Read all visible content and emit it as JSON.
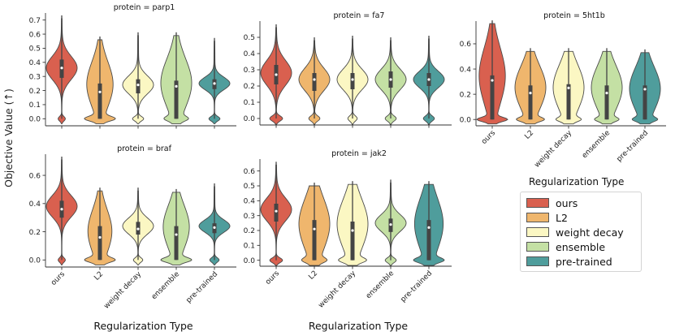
{
  "chart_data": {
    "type": "violin",
    "y_axis_label": "Objective Value (↑)",
    "x_axis_label": "Regularization Type",
    "categories": [
      "ours",
      "L2",
      "weight decay",
      "ensemble",
      "pre-trained"
    ],
    "colors": {
      "ours": "#d9604f",
      "L2": "#efb66d",
      "weight decay": "#fbf7c3",
      "ensemble": "#c4e0a4",
      "pre-trained": "#4f9d9c"
    },
    "legend": {
      "title": "Regularization Type",
      "entries": [
        "ours",
        "L2",
        "weight decay",
        "ensemble",
        "pre-trained"
      ]
    },
    "panels": [
      {
        "title": "protein = parp1",
        "ylim": [
          -0.05,
          0.75
        ],
        "yticks": [
          0.0,
          0.1,
          0.2,
          0.3,
          0.4,
          0.5,
          0.6,
          0.7
        ],
        "show_xticklabels": false,
        "show_xlabel": false,
        "violins": [
          {
            "category": "ours",
            "min": 0.0,
            "max": 0.71,
            "mode": 0.36,
            "median": 0.36,
            "q1": 0.29,
            "q3": 0.42,
            "zero_frac": 0.18
          },
          {
            "category": "L2",
            "min": 0.0,
            "max": 0.56,
            "mode": 0.24,
            "median": 0.19,
            "q1": 0.0,
            "q3": 0.25,
            "zero_frac": 0.45
          },
          {
            "category": "weight decay",
            "min": 0.0,
            "max": 0.59,
            "mode": 0.24,
            "median": 0.24,
            "q1": 0.18,
            "q3": 0.28,
            "zero_frac": 0.25
          },
          {
            "category": "ensemble",
            "min": 0.0,
            "max": 0.59,
            "mode": 0.25,
            "median": 0.23,
            "q1": 0.0,
            "q3": 0.27,
            "zero_frac": 0.3
          },
          {
            "category": "pre-trained",
            "min": 0.0,
            "max": 0.55,
            "mode": 0.25,
            "median": 0.25,
            "q1": 0.21,
            "q3": 0.28,
            "zero_frac": 0.25
          }
        ]
      },
      {
        "title": "protein = fa7",
        "ylim": [
          -0.04,
          0.6
        ],
        "yticks": [
          0.0,
          0.1,
          0.2,
          0.3,
          0.4,
          0.5
        ],
        "show_xticklabels": false,
        "show_xlabel": false,
        "violins": [
          {
            "category": "ours",
            "min": 0.0,
            "max": 0.56,
            "mode": 0.28,
            "median": 0.27,
            "q1": 0.21,
            "q3": 0.33,
            "zero_frac": 0.28
          },
          {
            "category": "L2",
            "min": 0.0,
            "max": 0.48,
            "mode": 0.24,
            "median": 0.24,
            "q1": 0.17,
            "q3": 0.28,
            "zero_frac": 0.25
          },
          {
            "category": "weight decay",
            "min": 0.0,
            "max": 0.49,
            "mode": 0.24,
            "median": 0.24,
            "q1": 0.18,
            "q3": 0.28,
            "zero_frac": 0.22
          },
          {
            "category": "ensemble",
            "min": 0.0,
            "max": 0.48,
            "mode": 0.24,
            "median": 0.24,
            "q1": 0.19,
            "q3": 0.29,
            "zero_frac": 0.25
          },
          {
            "category": "pre-trained",
            "min": 0.0,
            "max": 0.49,
            "mode": 0.24,
            "median": 0.24,
            "q1": 0.2,
            "q3": 0.28,
            "zero_frac": 0.25
          }
        ]
      },
      {
        "title": "protein = 5ht1b",
        "ylim": [
          -0.05,
          0.78
        ],
        "yticks": [
          0.0,
          0.2,
          0.4,
          0.6
        ],
        "show_xticklabels": true,
        "show_xlabel": false,
        "violins": [
          {
            "category": "ours",
            "min": 0.0,
            "max": 0.76,
            "mode": 0.34,
            "median": 0.31,
            "q1": 0.0,
            "q3": 0.35,
            "zero_frac": 0.45
          },
          {
            "category": "L2",
            "min": 0.0,
            "max": 0.54,
            "mode": 0.25,
            "median": 0.21,
            "q1": 0.0,
            "q3": 0.27,
            "zero_frac": 0.35
          },
          {
            "category": "weight decay",
            "min": 0.0,
            "max": 0.54,
            "mode": 0.25,
            "median": 0.25,
            "q1": 0.0,
            "q3": 0.28,
            "zero_frac": 0.3
          },
          {
            "category": "ensemble",
            "min": 0.0,
            "max": 0.54,
            "mode": 0.25,
            "median": 0.21,
            "q1": 0.0,
            "q3": 0.27,
            "zero_frac": 0.3
          },
          {
            "category": "pre-trained",
            "min": 0.0,
            "max": 0.53,
            "mode": 0.24,
            "median": 0.24,
            "q1": 0.0,
            "q3": 0.27,
            "zero_frac": 0.3
          }
        ]
      },
      {
        "title": "protein = braf",
        "ylim": [
          -0.05,
          0.75
        ],
        "yticks": [
          0.0,
          0.2,
          0.4,
          0.6
        ],
        "show_xticklabels": true,
        "show_xlabel": true,
        "violins": [
          {
            "category": "ours",
            "min": 0.0,
            "max": 0.71,
            "mode": 0.38,
            "median": 0.36,
            "q1": 0.3,
            "q3": 0.42,
            "zero_frac": 0.18
          },
          {
            "category": "L2",
            "min": 0.0,
            "max": 0.49,
            "mode": 0.2,
            "median": 0.16,
            "q1": 0.0,
            "q3": 0.24,
            "zero_frac": 0.45
          },
          {
            "category": "weight decay",
            "min": 0.0,
            "max": 0.49,
            "mode": 0.24,
            "median": 0.22,
            "q1": 0.18,
            "q3": 0.27,
            "zero_frac": 0.22
          },
          {
            "category": "ensemble",
            "min": 0.0,
            "max": 0.48,
            "mode": 0.23,
            "median": 0.18,
            "q1": 0.0,
            "q3": 0.24,
            "zero_frac": 0.45
          },
          {
            "category": "pre-trained",
            "min": 0.0,
            "max": 0.52,
            "mode": 0.24,
            "median": 0.23,
            "q1": 0.19,
            "q3": 0.26,
            "zero_frac": 0.22
          }
        ]
      },
      {
        "title": "protein = jak2",
        "ylim": [
          -0.04,
          0.68
        ],
        "yticks": [
          0.0,
          0.1,
          0.2,
          0.3,
          0.4,
          0.5,
          0.6
        ],
        "show_xticklabels": true,
        "show_xlabel": true,
        "violins": [
          {
            "category": "ours",
            "min": 0.0,
            "max": 0.64,
            "mode": 0.34,
            "median": 0.33,
            "q1": 0.26,
            "q3": 0.38,
            "zero_frac": 0.28
          },
          {
            "category": "L2",
            "min": 0.0,
            "max": 0.5,
            "mode": 0.24,
            "median": 0.21,
            "q1": 0.0,
            "q3": 0.27,
            "zero_frac": 0.3
          },
          {
            "category": "weight decay",
            "min": 0.0,
            "max": 0.51,
            "mode": 0.24,
            "median": 0.2,
            "q1": 0.0,
            "q3": 0.26,
            "zero_frac": 0.35
          },
          {
            "category": "ensemble",
            "min": 0.0,
            "max": 0.52,
            "mode": 0.25,
            "median": 0.24,
            "q1": 0.19,
            "q3": 0.28,
            "zero_frac": 0.25
          },
          {
            "category": "pre-trained",
            "min": 0.0,
            "max": 0.51,
            "mode": 0.24,
            "median": 0.22,
            "q1": 0.0,
            "q3": 0.27,
            "zero_frac": 0.4
          }
        ]
      }
    ]
  }
}
